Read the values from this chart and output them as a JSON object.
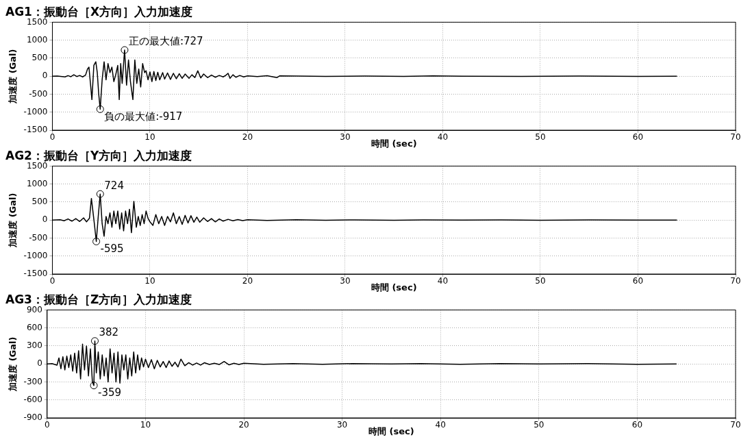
{
  "chart_data": [
    {
      "type": "line",
      "title": "AG1：振動台［X方向］入力加速度",
      "xlabel": "時間 (sec)",
      "ylabel": "加速度 (Gal)",
      "xlim": [
        0,
        70
      ],
      "xticks": [
        0,
        10,
        20,
        30,
        40,
        50,
        60,
        70
      ],
      "ylim": [
        -1500,
        1500
      ],
      "yticks": [
        -1500,
        -1000,
        -500,
        0,
        500,
        1000,
        1500
      ],
      "grid": true,
      "annotations": [
        {
          "text": "正の最大値:727",
          "x": 7.4,
          "y": 727
        },
        {
          "text": "負の最大値:-917",
          "x": 4.9,
          "y": -917
        }
      ],
      "x": [
        0,
        0.5,
        1,
        1.3,
        1.6,
        1.9,
        2.2,
        2.5,
        2.8,
        3.1,
        3.4,
        3.6,
        3.75,
        3.9,
        4.05,
        4.25,
        4.45,
        4.6,
        4.75,
        4.9,
        5.1,
        5.3,
        5.5,
        5.7,
        5.9,
        6.1,
        6.3,
        6.5,
        6.7,
        6.85,
        7,
        7.15,
        7.4,
        7.6,
        7.8,
        8,
        8.25,
        8.45,
        8.65,
        8.85,
        9.05,
        9.25,
        9.45,
        9.6,
        9.8,
        10,
        10.2,
        10.4,
        10.6,
        10.8,
        11,
        11.3,
        11.5,
        11.8,
        12.1,
        12.4,
        12.7,
        13,
        13.3,
        13.6,
        14,
        14.3,
        14.6,
        14.9,
        15.2,
        15.5,
        15.9,
        16.3,
        16.7,
        17.1,
        17.5,
        17.8,
        18,
        18.2,
        18.5,
        18.8,
        19.2,
        19.6,
        20,
        21,
        22,
        23,
        23.3,
        25,
        28,
        32,
        36,
        39,
        42,
        48,
        54,
        60,
        64
      ],
      "series": [
        {
          "color": "#000000",
          "values": [
            0,
            5,
            -10,
            -20,
            15,
            -15,
            40,
            -10,
            20,
            -20,
            30,
            200,
            250,
            -200,
            -650,
            300,
            400,
            100,
            -500,
            -917,
            -100,
            400,
            -100,
            350,
            100,
            250,
            -150,
            50,
            300,
            -650,
            350,
            -200,
            727,
            -250,
            450,
            -150,
            -650,
            450,
            -200,
            200,
            -300,
            350,
            100,
            150,
            -100,
            120,
            -150,
            130,
            -120,
            110,
            -100,
            100,
            -80,
            90,
            -90,
            80,
            -70,
            70,
            -60,
            60,
            -60,
            40,
            -40,
            150,
            -50,
            60,
            -40,
            30,
            -30,
            20,
            -20,
            30,
            80,
            -60,
            40,
            -30,
            20,
            -20,
            10,
            -10,
            15,
            -40,
            10,
            5,
            -5,
            5,
            -5,
            10,
            0,
            -5,
            5,
            -5,
            0
          ]
        }
      ]
    },
    {
      "type": "line",
      "title": "AG2：振動台［Y方向］入力加速度",
      "xlabel": "時間 (sec)",
      "ylabel": "加速度 (Gal)",
      "xlim": [
        0,
        70
      ],
      "xticks": [
        0,
        10,
        20,
        30,
        40,
        50,
        60,
        70
      ],
      "ylim": [
        -1500,
        1500
      ],
      "yticks": [
        -1500,
        -1000,
        -500,
        0,
        500,
        1000,
        1500
      ],
      "grid": true,
      "annotations": [
        {
          "text": "724",
          "x": 4.9,
          "y": 724
        },
        {
          "text": "-595",
          "x": 4.5,
          "y": -595
        }
      ],
      "x": [
        0,
        0.8,
        1.2,
        1.6,
        2,
        2.4,
        2.8,
        3.2,
        3.5,
        3.8,
        4,
        4.3,
        4.5,
        4.7,
        4.9,
        5.1,
        5.3,
        5.5,
        5.7,
        5.9,
        6.1,
        6.3,
        6.5,
        6.7,
        6.9,
        7.1,
        7.3,
        7.5,
        7.7,
        7.9,
        8.1,
        8.35,
        8.6,
        8.8,
        9,
        9.2,
        9.4,
        9.6,
        9.8,
        10,
        10.3,
        10.6,
        10.9,
        11.2,
        11.5,
        11.8,
        12.1,
        12.4,
        12.7,
        13,
        13.3,
        13.6,
        13.9,
        14.2,
        14.5,
        14.8,
        15.1,
        15.5,
        15.9,
        16.3,
        16.7,
        17.1,
        17.5,
        18,
        18.5,
        19,
        19.5,
        20,
        22,
        25,
        28,
        31,
        35,
        38,
        42,
        46,
        50,
        55,
        60,
        64
      ],
      "series": [
        {
          "color": "#000000",
          "values": [
            0,
            10,
            -20,
            30,
            -30,
            40,
            -40,
            60,
            -50,
            50,
            600,
            -100,
            -595,
            100,
            724,
            -100,
            -450,
            100,
            -100,
            200,
            -200,
            250,
            -100,
            250,
            -250,
            200,
            -300,
            250,
            -100,
            300,
            -350,
            520,
            -200,
            100,
            -150,
            150,
            -100,
            250,
            50,
            -50,
            -150,
            150,
            -100,
            100,
            -150,
            100,
            -50,
            200,
            -100,
            100,
            -120,
            130,
            -80,
            120,
            -60,
            80,
            -60,
            60,
            -40,
            40,
            -50,
            30,
            -30,
            20,
            -20,
            15,
            -15,
            10,
            -10,
            10,
            -5,
            5,
            -5,
            5,
            0,
            5,
            -5,
            5,
            0,
            0
          ]
        }
      ]
    },
    {
      "type": "line",
      "title": "AG3：振動台［Z方向］入力加速度",
      "xlabel": "時間 (sec)",
      "ylabel": "加速度 (Gal)",
      "xlim": [
        0,
        70
      ],
      "xticks": [
        0,
        10,
        20,
        30,
        40,
        50,
        60,
        70
      ],
      "ylim": [
        -900,
        900
      ],
      "yticks": [
        -900,
        -600,
        -300,
        0,
        300,
        600,
        900
      ],
      "grid": true,
      "annotations": [
        {
          "text": "382",
          "x": 4.85,
          "y": 382
        },
        {
          "text": "-359",
          "x": 4.75,
          "y": -359
        }
      ],
      "x": [
        0,
        0.5,
        1,
        1.2,
        1.4,
        1.6,
        1.8,
        2,
        2.2,
        2.4,
        2.6,
        2.8,
        3,
        3.2,
        3.4,
        3.6,
        3.8,
        4,
        4.2,
        4.4,
        4.6,
        4.75,
        4.85,
        5,
        5.2,
        5.4,
        5.6,
        5.8,
        6,
        6.2,
        6.4,
        6.6,
        6.8,
        7,
        7.2,
        7.4,
        7.6,
        7.8,
        8,
        8.2,
        8.4,
        8.6,
        8.8,
        9,
        9.2,
        9.4,
        9.6,
        9.8,
        10,
        10.3,
        10.6,
        10.9,
        11.2,
        11.5,
        11.8,
        12.1,
        12.4,
        12.7,
        13,
        13.3,
        13.6,
        14,
        14.4,
        14.8,
        15.2,
        15.6,
        16,
        16.5,
        17,
        17.5,
        18,
        18.5,
        19,
        19.5,
        20,
        22,
        25,
        28,
        31,
        35,
        38,
        42,
        46,
        50,
        55,
        60,
        64
      ],
      "series": [
        {
          "color": "#000000",
          "values": [
            0,
            5,
            -20,
            100,
            -80,
            120,
            -100,
            130,
            -60,
            150,
            -120,
            180,
            -150,
            220,
            -250,
            330,
            -100,
            300,
            -200,
            250,
            -300,
            -359,
            382,
            -150,
            200,
            -250,
            150,
            -200,
            100,
            -300,
            250,
            -150,
            180,
            -300,
            200,
            -320,
            150,
            -100,
            150,
            -250,
            100,
            -200,
            200,
            -150,
            150,
            -100,
            100,
            -50,
            80,
            -60,
            70,
            -80,
            60,
            -50,
            40,
            -60,
            50,
            -40,
            30,
            -50,
            80,
            -30,
            20,
            -20,
            15,
            -20,
            20,
            -10,
            10,
            -10,
            40,
            -15,
            10,
            -10,
            10,
            -5,
            5,
            -5,
            5,
            0,
            5,
            -5,
            5,
            0,
            5,
            -5,
            0
          ]
        }
      ]
    }
  ]
}
